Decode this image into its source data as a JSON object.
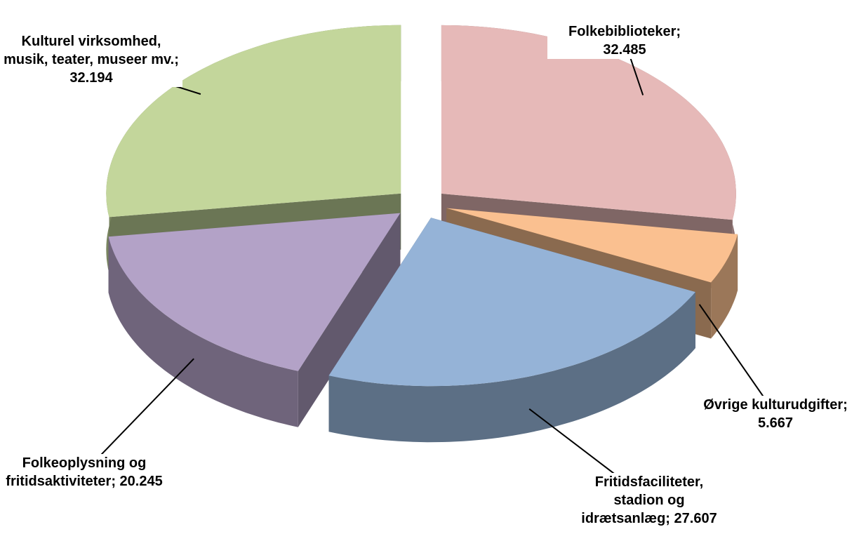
{
  "chart_data": {
    "type": "pie3d",
    "values": [
      32485,
      5667,
      27607,
      20245,
      32194
    ],
    "value_labels": [
      "Folkebiblioteker; 32.485",
      "Øvrige kulturudgifter; 5.667",
      "Fritidsfaciliteter, stadion og idrætsanlæg; 27.607",
      "Folkeoplysning og fritidsaktiviteter; 20.245",
      "Kulturel virksomhed, musik, teater, museer mv.; 32.194"
    ],
    "colors": [
      "#e6b9b8",
      "#fac090",
      "#95b3d7",
      "#b3a2c7",
      "#c3d69b"
    ]
  }
}
